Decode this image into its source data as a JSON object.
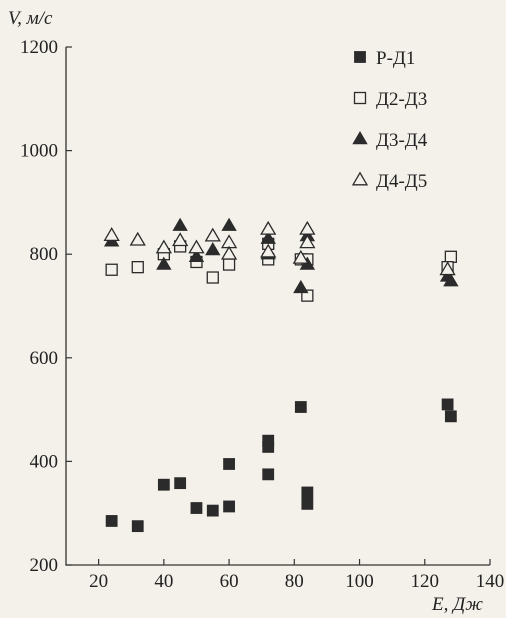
{
  "chart_data": {
    "type": "scatter",
    "xlabel": "E, Дж",
    "ylabel": "V, м/с",
    "xlim": [
      10,
      140
    ],
    "ylim": [
      200,
      1200
    ],
    "xticks": [
      20,
      40,
      60,
      80,
      100,
      120,
      140
    ],
    "yticks": [
      200,
      400,
      600,
      800,
      1000,
      1200
    ],
    "grid": false,
    "legend": "top-right",
    "series": [
      {
        "name": "Р-Д1",
        "marker": "square-filled",
        "color": "#2b2b2b",
        "points": [
          [
            24,
            285
          ],
          [
            32,
            275
          ],
          [
            40,
            355
          ],
          [
            45,
            358
          ],
          [
            50,
            310
          ],
          [
            55,
            305
          ],
          [
            60,
            313
          ],
          [
            60,
            395
          ],
          [
            72,
            375
          ],
          [
            72,
            428
          ],
          [
            72,
            440
          ],
          [
            82,
            505
          ],
          [
            84,
            340
          ],
          [
            84,
            318
          ],
          [
            127,
            510
          ],
          [
            128,
            487
          ]
        ]
      },
      {
        "name": "Д2-Д3",
        "marker": "square-open",
        "color": "#2b2b2b",
        "points": [
          [
            24,
            770
          ],
          [
            32,
            775
          ],
          [
            40,
            800
          ],
          [
            45,
            815
          ],
          [
            50,
            785
          ],
          [
            55,
            755
          ],
          [
            60,
            780
          ],
          [
            72,
            790
          ],
          [
            72,
            820
          ],
          [
            82,
            790
          ],
          [
            84,
            720
          ],
          [
            84,
            790
          ],
          [
            128,
            795
          ],
          [
            127,
            775
          ]
        ]
      },
      {
        "name": "Д3-Д4",
        "marker": "triangle-filled",
        "color": "#2b2b2b",
        "points": [
          [
            24,
            825
          ],
          [
            40,
            780
          ],
          [
            45,
            855
          ],
          [
            50,
            795
          ],
          [
            55,
            808
          ],
          [
            60,
            855
          ],
          [
            72,
            800
          ],
          [
            72,
            830
          ],
          [
            82,
            735
          ],
          [
            84,
            780
          ],
          [
            84,
            835
          ],
          [
            127,
            757
          ],
          [
            128,
            748
          ]
        ]
      },
      {
        "name": "Д4-Д5",
        "marker": "triangle-open",
        "color": "#2b2b2b",
        "points": [
          [
            24,
            836
          ],
          [
            32,
            827
          ],
          [
            40,
            812
          ],
          [
            45,
            826
          ],
          [
            50,
            812
          ],
          [
            55,
            835
          ],
          [
            60,
            822
          ],
          [
            60,
            800
          ],
          [
            72,
            848
          ],
          [
            72,
            804
          ],
          [
            82,
            792
          ],
          [
            84,
            848
          ],
          [
            84,
            822
          ],
          [
            127,
            770
          ]
        ]
      }
    ]
  }
}
